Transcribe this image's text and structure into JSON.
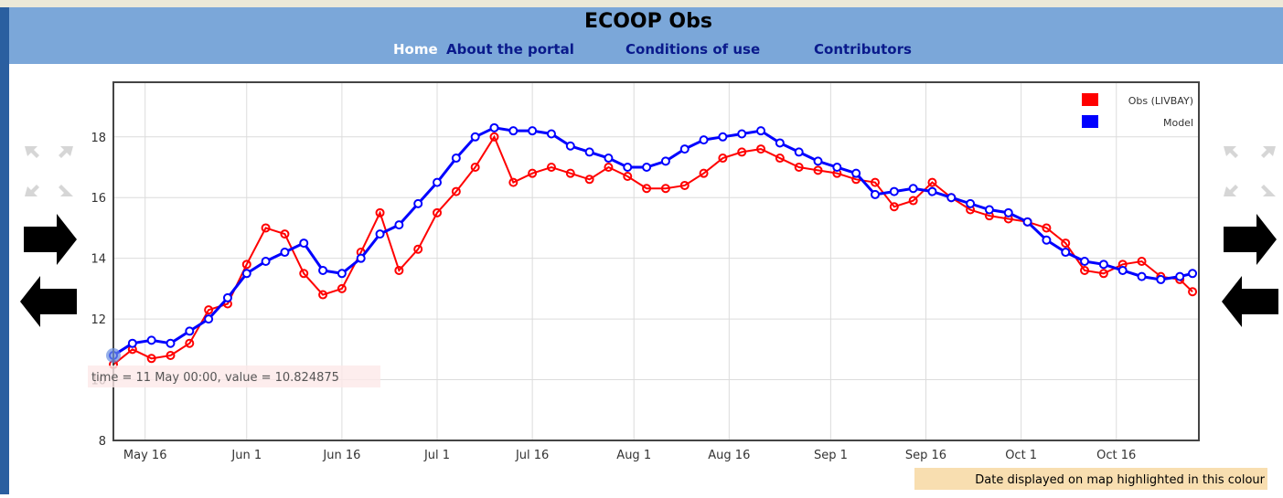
{
  "header": {
    "title": "ECOOP Obs",
    "nav": [
      "Home",
      "About the portal",
      "Conditions of use",
      "Contributors"
    ]
  },
  "chart_data": {
    "type": "line",
    "x": [
      "May 11",
      "May 14",
      "May 17",
      "May 20",
      "May 23",
      "May 26",
      "May 29",
      "Jun 1",
      "Jun 4",
      "Jun 7",
      "Jun 10",
      "Jun 13",
      "Jun 16",
      "Jun 19",
      "Jun 22",
      "Jun 25",
      "Jun 28",
      "Jul 1",
      "Jul 4",
      "Jul 7",
      "Jul 10",
      "Jul 13",
      "Jul 16",
      "Jul 19",
      "Jul 22",
      "Jul 25",
      "Jul 28",
      "Jul 31",
      "Aug 3",
      "Aug 6",
      "Aug 9",
      "Aug 12",
      "Aug 15",
      "Aug 18",
      "Aug 21",
      "Aug 24",
      "Aug 27",
      "Aug 30",
      "Sep 2",
      "Sep 5",
      "Sep 8",
      "Sep 11",
      "Sep 14",
      "Sep 17",
      "Sep 20",
      "Sep 23",
      "Sep 26",
      "Sep 29",
      "Oct 2",
      "Oct 5",
      "Oct 8",
      "Oct 11",
      "Oct 14",
      "Oct 17",
      "Oct 20",
      "Oct 23",
      "Oct 26",
      "Oct 28"
    ],
    "series": [
      {
        "name": "Obs (LIVBAY)",
        "color": "#ff0000",
        "values": [
          10.5,
          11.0,
          10.7,
          10.8,
          11.2,
          12.3,
          12.5,
          13.8,
          15.0,
          14.8,
          13.5,
          12.8,
          13.0,
          14.2,
          15.5,
          13.6,
          14.3,
          15.5,
          16.2,
          17.0,
          18.0,
          16.5,
          16.8,
          17.0,
          16.8,
          16.6,
          17.0,
          16.7,
          16.3,
          16.3,
          16.4,
          16.8,
          17.3,
          17.5,
          17.6,
          17.3,
          17.0,
          16.9,
          16.8,
          16.6,
          16.5,
          15.7,
          15.9,
          16.5,
          16.0,
          15.6,
          15.4,
          15.3,
          15.2,
          15.0,
          14.5,
          13.6,
          13.5,
          13.8,
          13.9,
          13.4,
          13.3,
          12.9
        ]
      },
      {
        "name": "Model",
        "color": "#0000ff",
        "values": [
          10.8,
          11.2,
          11.3,
          11.2,
          11.6,
          12.0,
          12.7,
          13.5,
          13.9,
          14.2,
          14.5,
          13.6,
          13.5,
          14.0,
          14.8,
          15.1,
          15.8,
          16.5,
          17.3,
          18.0,
          18.3,
          18.2,
          18.2,
          18.1,
          17.7,
          17.5,
          17.3,
          17.0,
          17.0,
          17.2,
          17.6,
          17.9,
          18.0,
          18.1,
          18.2,
          17.8,
          17.5,
          17.2,
          17.0,
          16.8,
          16.1,
          16.2,
          16.3,
          16.2,
          16.0,
          15.8,
          15.6,
          15.5,
          15.2,
          14.6,
          14.2,
          13.9,
          13.8,
          13.6,
          13.4,
          13.3,
          13.4,
          13.5
        ]
      }
    ],
    "xlim": [
      "May 11",
      "Oct 29"
    ],
    "xticks": [
      "May 16",
      "Jun 1",
      "Jun 16",
      "Jul 1",
      "Jul 16",
      "Aug 1",
      "Aug 16",
      "Sep 1",
      "Sep 16",
      "Oct 1",
      "Oct 16"
    ],
    "ylim": [
      8,
      19.8
    ],
    "yticks": [
      8,
      10,
      12,
      14,
      16,
      18
    ],
    "grid": true,
    "tooltip": "time = 11 May 00:00, value = 10.824875",
    "note": "Date displayed on map highlighted in this colour"
  }
}
